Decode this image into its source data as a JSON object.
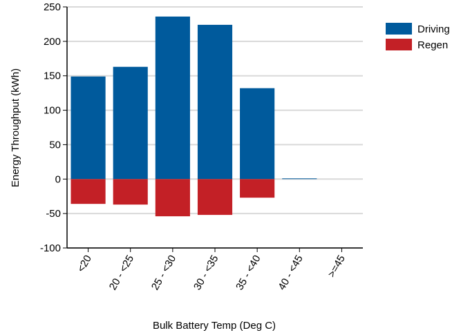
{
  "chart_data": {
    "type": "bar",
    "categories": [
      "<20",
      "20 - <25",
      "25 - <30",
      "30 - <35",
      "35 - <40",
      "40 - <45",
      ">=45"
    ],
    "series": [
      {
        "name": "Driving",
        "color": "#005a9c",
        "values": [
          149,
          163,
          236,
          224,
          132,
          1,
          0
        ]
      },
      {
        "name": "Regen",
        "color": "#c32026",
        "values": [
          -36,
          -37,
          -54,
          -52,
          -27,
          0,
          0
        ]
      }
    ],
    "xlabel": "Bulk Battery Temp (Deg C)",
    "ylabel": "Energy Throughput (kWh)",
    "ylim": [
      -100,
      250
    ],
    "yticks": [
      -100,
      -50,
      0,
      50,
      100,
      150,
      200,
      250
    ],
    "grid": true,
    "legend": "top-right"
  }
}
